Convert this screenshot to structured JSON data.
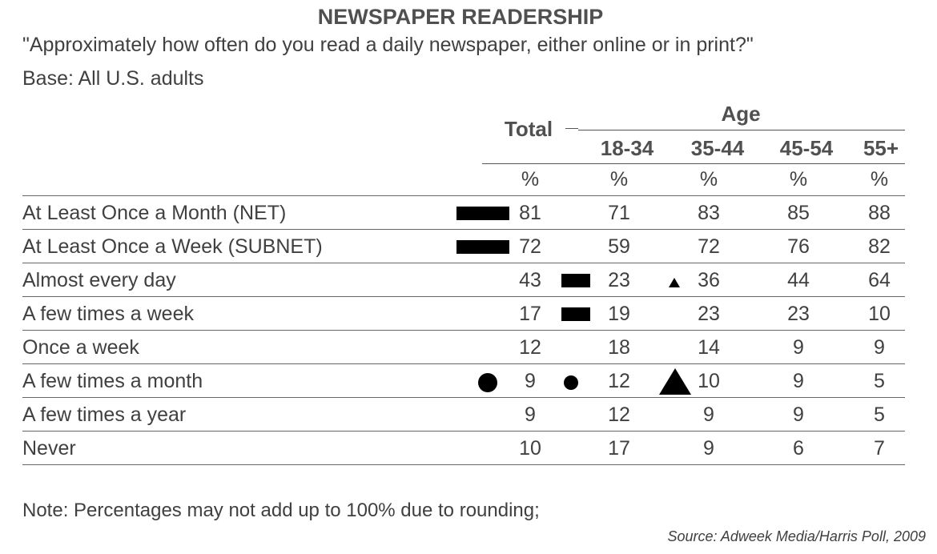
{
  "title": "NEWSPAPER READERSHIP",
  "question": "\"Approximately how often do you read a daily newspaper, either online or in print?\"",
  "base": "Base: All U.S. adults",
  "table": {
    "total_header": "Total",
    "group_header": "Age",
    "age_columns": [
      "18-34",
      "35-44",
      "45-54",
      "55+"
    ],
    "unit_row": [
      "%",
      "%",
      "%",
      "%",
      "%"
    ],
    "rows": [
      {
        "label": "At Least Once a Month (NET)",
        "values": [
          "81",
          "71",
          "83",
          "85",
          "88"
        ]
      },
      {
        "label": "At Least Once a Week (SUBNET)",
        "values": [
          "72",
          "59",
          "72",
          "76",
          "82"
        ]
      },
      {
        "label": "Almost every day",
        "values": [
          "43",
          "23",
          "36",
          "44",
          "64"
        ]
      },
      {
        "label": "A few times a week",
        "values": [
          "17",
          "19",
          "23",
          "23",
          "10"
        ]
      },
      {
        "label": "Once a week",
        "values": [
          "12",
          "18",
          "14",
          "9",
          "9"
        ]
      },
      {
        "label": "A few times a month",
        "values": [
          "9",
          "12",
          "10",
          "9",
          "5"
        ]
      },
      {
        "label": "A few times a year",
        "values": [
          "9",
          "12",
          "9",
          "9",
          "5"
        ]
      },
      {
        "label": "Never",
        "values": [
          "10",
          "17",
          "9",
          "6",
          "7"
        ]
      }
    ]
  },
  "markers": [
    {
      "row": "At Least Once a Month (NET)",
      "column": "Total",
      "shape": "bar-icon"
    },
    {
      "row": "At Least Once a Week (SUBNET)",
      "column": "Total",
      "shape": "bar-icon"
    },
    {
      "row": "Almost every day",
      "column": "18-34",
      "shape": "bar-icon"
    },
    {
      "row": "Almost every day",
      "column": "35-44",
      "shape": "small-triangle-icon"
    },
    {
      "row": "A few times a week",
      "column": "18-34",
      "shape": "bar-icon"
    },
    {
      "row": "A few times a month",
      "column": "Total",
      "shape": "large-dot-icon"
    },
    {
      "row": "A few times a month",
      "column": "18-34",
      "shape": "small-dot-icon"
    },
    {
      "row": "A few times a month",
      "column": "35-44",
      "shape": "large-triangle-icon"
    }
  ],
  "note": "Note: Percentages may not add up to 100% due to rounding;",
  "source": "Source: Adweek Media/Harris Poll, 2009",
  "colors": {
    "text": "#404040",
    "marker": "#000000"
  }
}
